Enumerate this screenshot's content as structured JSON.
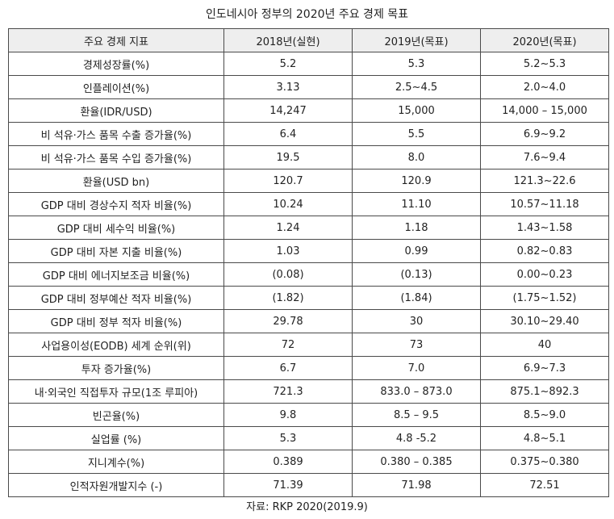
{
  "title": "인도네시아 정부의 2020년 주요 경제 목표",
  "table": {
    "headers": [
      "주요 경제 지표",
      "2018년(실현)",
      "2019년(목표)",
      "2020년(목표)"
    ],
    "rows": [
      [
        "경제성장률(%)",
        "5.2",
        "5.3",
        "5.2~5.3"
      ],
      [
        "인플레이션(%)",
        "3.13",
        "2.5~4.5",
        "2.0~4.0"
      ],
      [
        "환율(IDR/USD)",
        "14,247",
        "15,000",
        "14,000 – 15,000"
      ],
      [
        "비 석유·가스 품목 수출 증가율(%)",
        "6.4",
        "5.5",
        "6.9~9.2"
      ],
      [
        "비 석유·가스 품목 수입 증가율(%)",
        "19.5",
        "8.0",
        "7.6~9.4"
      ],
      [
        "환율(USD bn)",
        "120.7",
        "120.9",
        "121.3~22.6"
      ],
      [
        "GDP 대비 경상수지 적자 비율(%)",
        "10.24",
        "11.10",
        "10.57~11.18"
      ],
      [
        "GDP 대비 세수익 비율(%)",
        "1.24",
        "1.18",
        "1.43~1.58"
      ],
      [
        "GDP 대비 자본 지출 비율(%)",
        "1.03",
        "0.99",
        "0.82~0.83"
      ],
      [
        "GDP 대비 에너지보조금 비율(%)",
        "(0.08)",
        "(0.13)",
        "0.00~0.23"
      ],
      [
        "GDP 대비 정부예산 적자 비율(%)",
        "(1.82)",
        "(1.84)",
        "(1.75~1.52)"
      ],
      [
        "GDP 대비 정부 적자 비율(%)",
        "29.78",
        "30",
        "30.10~29.40"
      ],
      [
        "사업용이성(EODB) 세계 순위(위)",
        "72",
        "73",
        "40"
      ],
      [
        "투자 증가율(%)",
        "6.7",
        "7.0",
        "6.9~7.3"
      ],
      [
        "내·외국인 직접투자 규모(1조 루피아)",
        "721.3",
        "833.0 – 873.0",
        "875.1~892.3"
      ],
      [
        "빈곤율(%)",
        "9.8",
        "8.5 – 9.5",
        "8.5~9.0"
      ],
      [
        "실업률 (%)",
        "5.3",
        "4.8 -5.2",
        "4.8~5.1"
      ],
      [
        "지니계수(%)",
        "0.389",
        "0.380 – 0.385",
        "0.375~0.380"
      ],
      [
        "인적자원개발지수 (-)",
        "71.39",
        "71.98",
        "72.51"
      ]
    ]
  },
  "source": "자료: RKP 2020(2019.9)"
}
